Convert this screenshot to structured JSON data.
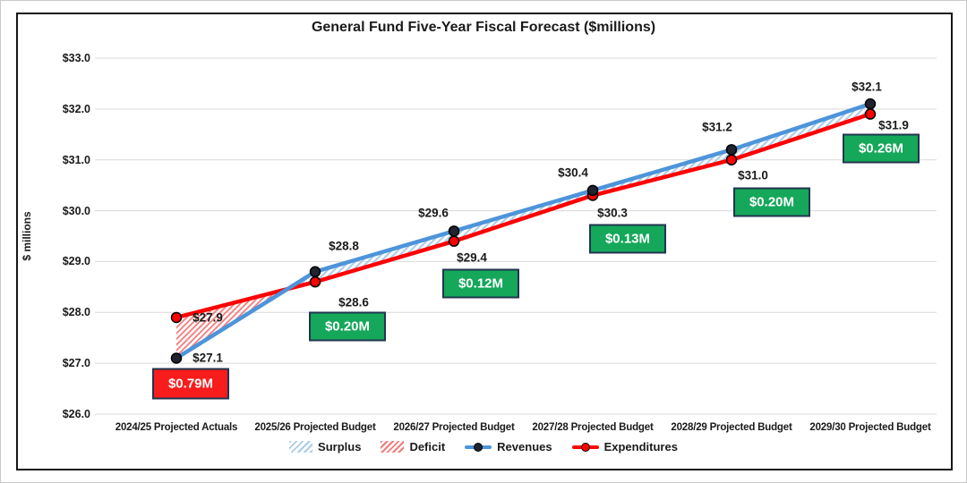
{
  "chart_data": {
    "type": "line",
    "title": "General Fund Five-Year Fiscal Forecast ($millions)",
    "ylabel": "$ millions",
    "ylim": [
      26,
      33
    ],
    "grid": true,
    "ytick_values": [
      26,
      27,
      28,
      29,
      30,
      31,
      32,
      33
    ],
    "ytick_labels": [
      "$26.0",
      "$27.0",
      "$28.0",
      "$29.0",
      "$30.0",
      "$31.0",
      "$32.0",
      "$33.0"
    ],
    "categories": [
      "2024/25 Projected Actuals",
      "2025/26 Projected Budget",
      "2026/27 Projected Budget",
      "2027/28 Projected Budget",
      "2028/29 Projected Budget",
      "2029/30 Projected Budget"
    ],
    "series": [
      {
        "name": "Revenues",
        "values": [
          27.1,
          28.8,
          29.6,
          30.4,
          31.2,
          32.1
        ],
        "labels": [
          "$27.1",
          "$28.8",
          "$29.6",
          "$30.4",
          "$31.2",
          "$32.1"
        ],
        "line_color": "#4D94DA",
        "marker_fill": "#20242E"
      },
      {
        "name": "Expenditures",
        "values": [
          27.9,
          28.6,
          29.4,
          30.3,
          31.0,
          31.9
        ],
        "labels": [
          "$27.9",
          "$28.6",
          "$29.4",
          "$30.3",
          "$31.0",
          "$31.9"
        ],
        "line_color": "#FE0000",
        "marker_fill": "#FE0000"
      }
    ],
    "gaps": [
      {
        "label": "$0.79M",
        "type": "deficit"
      },
      {
        "label": "$0.20M",
        "type": "surplus"
      },
      {
        "label": "$0.12M",
        "type": "surplus"
      },
      {
        "label": "$0.13M",
        "type": "surplus"
      },
      {
        "label": "$0.20M",
        "type": "surplus"
      },
      {
        "label": "$0.26M",
        "type": "surplus"
      }
    ],
    "legend": {
      "position": "bottom",
      "items": [
        "Surplus",
        "Deficit",
        "Revenues",
        "Expenditures"
      ]
    },
    "colors": {
      "surplus_hatch": "#A9CCEA",
      "deficit_hatch": "#F07B7B",
      "surplus_box": "#15A75A",
      "deficit_box": "#F81C1C",
      "box_border": "#20364F",
      "grid": "#D9D9D9",
      "text": "#1a1a1a"
    }
  }
}
